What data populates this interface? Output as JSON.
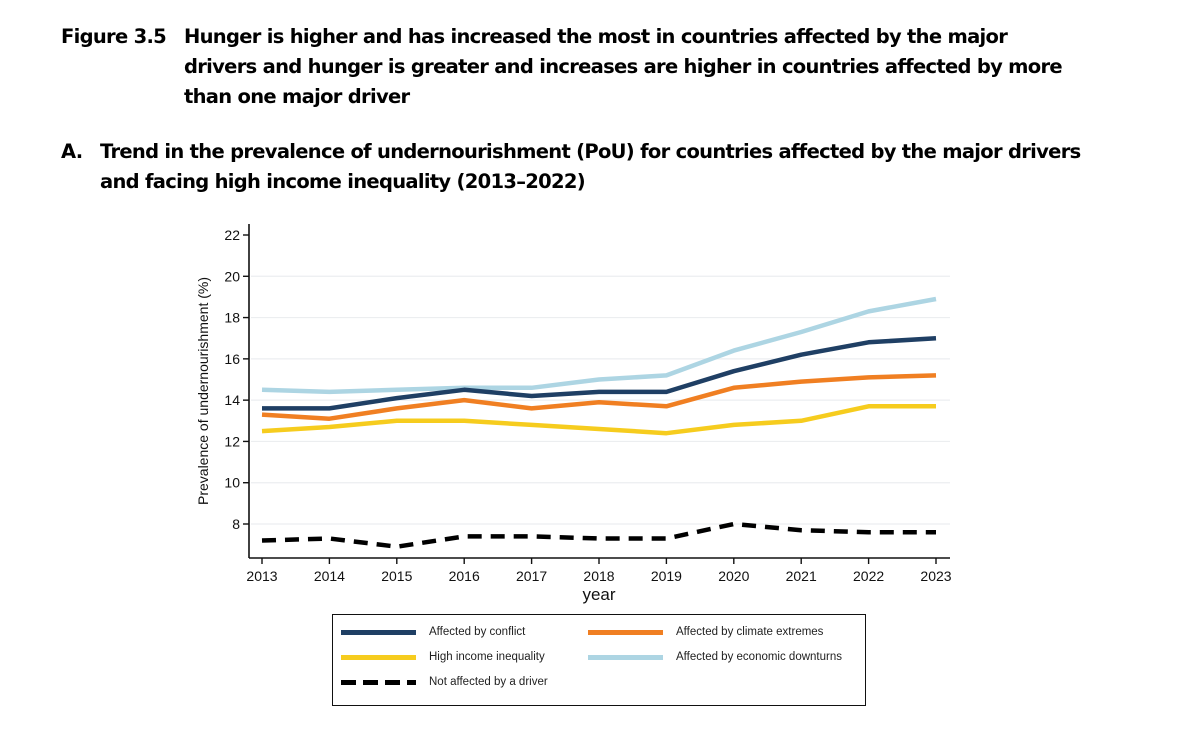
{
  "figure": {
    "label": "Figure 3.5",
    "title": "Hunger is higher and has increased the most in countries affected by the major drivers and hunger is greater and increases are higher in countries affected by more than one major driver"
  },
  "panel": {
    "letter": "A.",
    "title": "Trend in the prevalence of undernourishment (PoU) for countries affected by the major drivers and facing high income inequality (2013–2022)"
  },
  "chart_data": {
    "type": "line",
    "title": "Trend in the prevalence of undernourishment (PoU) for countries affected by the major drivers and facing high income inequality (2013–2022)",
    "xlabel": "year",
    "ylabel": "Prevalence of undernourishment (%)",
    "x": [
      2013,
      2014,
      2015,
      2016,
      2017,
      2018,
      2019,
      2020,
      2021,
      2022,
      2023
    ],
    "x_tick_labels": [
      "2013",
      "2014",
      "2015",
      "2016",
      "2017",
      "2018",
      "2019",
      "2020",
      "2021",
      "2022",
      "2023"
    ],
    "y_ticks": [
      8,
      10,
      12,
      14,
      16,
      18,
      20,
      22
    ],
    "y_tick_labels": [
      "8",
      "10",
      "12",
      "14",
      "16",
      "18",
      "20",
      "22"
    ],
    "ylim": [
      6.35,
      22.5
    ],
    "xlim": [
      2013,
      2023
    ],
    "grid": "horizontal",
    "legend_position": "bottom",
    "series": [
      {
        "name": "Affected by conflict",
        "color": "#1f3f64",
        "style": "solid",
        "values": [
          13.6,
          13.6,
          14.1,
          14.5,
          14.2,
          14.4,
          14.4,
          15.4,
          16.2,
          16.8,
          17.0
        ]
      },
      {
        "name": "Affected by climate extremes",
        "color": "#f07f22",
        "style": "solid",
        "values": [
          13.3,
          13.1,
          13.6,
          14.0,
          13.6,
          13.9,
          13.7,
          14.6,
          14.9,
          15.1,
          15.2
        ]
      },
      {
        "name": "High income inequality",
        "color": "#f6cc1e",
        "style": "solid",
        "values": [
          12.5,
          12.7,
          13.0,
          13.0,
          12.8,
          12.6,
          12.4,
          12.8,
          13.0,
          13.7,
          13.7
        ]
      },
      {
        "name": "Affected by economic downturns",
        "color": "#add5e3",
        "style": "solid",
        "values": [
          14.5,
          14.4,
          14.5,
          14.6,
          14.6,
          15.0,
          15.2,
          16.4,
          17.3,
          18.3,
          18.9
        ]
      },
      {
        "name": "Not affected by a driver",
        "color": "#000000",
        "style": "dashed",
        "values": [
          7.2,
          7.3,
          6.9,
          7.4,
          7.4,
          7.3,
          7.3,
          8.0,
          7.7,
          7.6,
          7.6
        ]
      }
    ]
  },
  "legend": {
    "items": [
      {
        "label": "Affected by conflict",
        "color": "#1f3f64",
        "style": "solid"
      },
      {
        "label": "Affected by climate extremes",
        "color": "#f07f22",
        "style": "solid"
      },
      {
        "label": "High income inequality",
        "color": "#f6cc1e",
        "style": "solid"
      },
      {
        "label": "Affected by economic downturns",
        "color": "#add5e3",
        "style": "solid"
      },
      {
        "label": "Not affected by a driver",
        "color": "#000000",
        "style": "dashed"
      }
    ]
  }
}
